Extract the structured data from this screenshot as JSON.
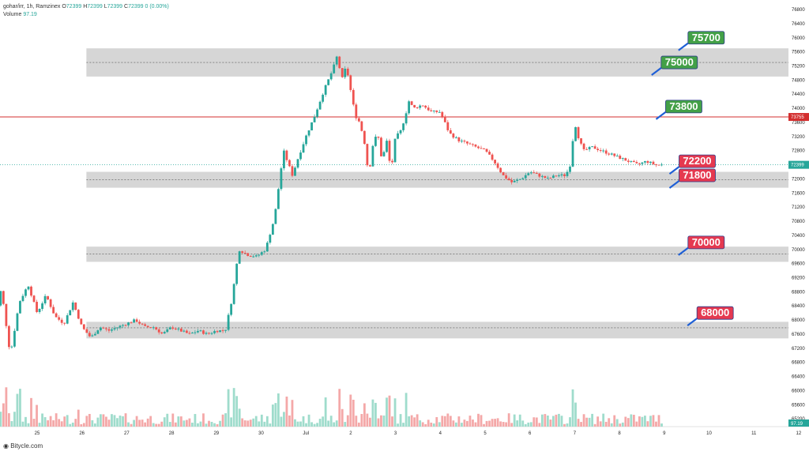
{
  "legend": {
    "symbol": "gohar/irr, 1h, Ramzinex",
    "o_label": "O",
    "o_value": "72399",
    "h_label": "H",
    "h_value": "72399",
    "l_label": "L",
    "l_value": "72399",
    "c_label": "C",
    "c_value": "72399",
    "change": "0 (0.00%)",
    "volume_label": "Volume",
    "volume_value": "97.19"
  },
  "footer": {
    "brand": "Bitycle.com"
  },
  "colors": {
    "up": "#26a69a",
    "down": "#ef5350",
    "zone": "#c8c8c8",
    "resistance_line": "#d32f2f",
    "callout_green": "#43a047",
    "callout_red": "#e53950",
    "arrow_blue": "#1e5fd6",
    "vol_up": "#9fdccc",
    "vol_down": "#f4a8a8"
  },
  "chart_data": {
    "type": "candlestick",
    "x_ticks": [
      "25",
      "26",
      "27",
      "28",
      "29",
      "30",
      "Jul",
      "2",
      "3",
      "4",
      "5",
      "6",
      "7",
      "8",
      "9",
      "10",
      "11",
      "12"
    ],
    "y_ticks": [
      65200,
      65600,
      66000,
      66400,
      66800,
      67200,
      67600,
      68000,
      68400,
      68800,
      69200,
      69600,
      70000,
      70400,
      70800,
      71200,
      71600,
      72000,
      72400,
      72800,
      73200,
      73600,
      74000,
      74400,
      74800,
      75200,
      75600,
      76000,
      76400,
      76800
    ],
    "ylim": [
      64980,
      76980
    ],
    "current_price": 72399,
    "current_price_label": "72399",
    "resistance_price": 73755,
    "resistance_label": "73755",
    "volume_label": "97.19",
    "zones": [
      {
        "low": 74900,
        "high": 75700,
        "mid": 75300
      },
      {
        "low": 71750,
        "high": 72200,
        "mid": 71980
      },
      {
        "low": 69650,
        "high": 70080,
        "mid": 69870
      },
      {
        "low": 67480,
        "high": 67950,
        "mid": 67780
      }
    ],
    "price_path": [
      [
        24.0,
        67600
      ],
      [
        24.2,
        68900
      ],
      [
        24.4,
        67000
      ],
      [
        24.6,
        68500
      ],
      [
        24.8,
        69000
      ],
      [
        25.0,
        68200
      ],
      [
        25.2,
        68700
      ],
      [
        25.4,
        68100
      ],
      [
        25.6,
        67900
      ],
      [
        25.8,
        68500
      ],
      [
        26.0,
        67800
      ],
      [
        26.2,
        67500
      ],
      [
        26.4,
        67800
      ],
      [
        26.6,
        67700
      ],
      [
        26.8,
        67800
      ],
      [
        27.0,
        67900
      ],
      [
        27.2,
        68000
      ],
      [
        27.4,
        67800
      ],
      [
        27.6,
        67800
      ],
      [
        27.8,
        67600
      ],
      [
        28.0,
        67800
      ],
      [
        28.2,
        67700
      ],
      [
        28.4,
        67600
      ],
      [
        28.6,
        67700
      ],
      [
        28.8,
        67600
      ],
      [
        29.0,
        67700
      ],
      [
        29.2,
        67700
      ],
      [
        29.35,
        68600
      ],
      [
        29.5,
        70000
      ],
      [
        29.7,
        69850
      ],
      [
        29.9,
        69800
      ],
      [
        30.1,
        70000
      ],
      [
        30.3,
        70900
      ],
      [
        30.5,
        72800
      ],
      [
        30.7,
        72100
      ],
      [
        30.8,
        72500
      ],
      [
        31.0,
        73200
      ],
      [
        31.2,
        73800
      ],
      [
        31.4,
        74500
      ],
      [
        31.6,
        75100
      ],
      [
        31.7,
        75500
      ],
      [
        31.8,
        74800
      ],
      [
        31.9,
        75200
      ],
      [
        32.0,
        74500
      ],
      [
        32.1,
        73800
      ],
      [
        32.2,
        73600
      ],
      [
        32.3,
        73100
      ],
      [
        32.4,
        72100
      ],
      [
        32.5,
        73000
      ],
      [
        32.6,
        73300
      ],
      [
        32.7,
        72500
      ],
      [
        32.8,
        73100
      ],
      [
        32.9,
        72200
      ],
      [
        33.0,
        73200
      ],
      [
        33.1,
        73300
      ],
      [
        33.2,
        73700
      ],
      [
        33.3,
        74200
      ],
      [
        33.4,
        74000
      ],
      [
        33.6,
        74100
      ],
      [
        33.8,
        73900
      ],
      [
        34.0,
        73900
      ],
      [
        34.2,
        73300
      ],
      [
        34.4,
        73100
      ],
      [
        34.6,
        73000
      ],
      [
        34.8,
        72900
      ],
      [
        35.0,
        72800
      ],
      [
        35.2,
        72500
      ],
      [
        35.4,
        72100
      ],
      [
        35.6,
        71900
      ],
      [
        35.8,
        72000
      ],
      [
        36.0,
        72200
      ],
      [
        36.2,
        72100
      ],
      [
        36.4,
        72000
      ],
      [
        36.6,
        72100
      ],
      [
        36.8,
        72100
      ],
      [
        36.9,
        72400
      ],
      [
        37.0,
        73600
      ],
      [
        37.1,
        73100
      ],
      [
        37.2,
        72800
      ],
      [
        37.4,
        72900
      ],
      [
        37.6,
        72800
      ],
      [
        37.8,
        72700
      ],
      [
        38.0,
        72600
      ],
      [
        38.2,
        72500
      ],
      [
        38.4,
        72400
      ],
      [
        38.6,
        72500
      ],
      [
        38.8,
        72400
      ],
      [
        39.0,
        72399
      ]
    ],
    "callouts": [
      {
        "label": "75700",
        "type": "green",
        "x": 39.6,
        "price": 76000
      },
      {
        "label": "75000",
        "type": "green",
        "x": 39.0,
        "price": 75300
      },
      {
        "label": "73800",
        "type": "green",
        "x": 39.1,
        "price": 74050
      },
      {
        "label": "72200",
        "type": "red",
        "x": 39.4,
        "price": 72500
      },
      {
        "label": "71800",
        "type": "red",
        "x": 39.4,
        "price": 72100
      },
      {
        "label": "70000",
        "type": "red",
        "x": 39.6,
        "price": 70200
      },
      {
        "label": "68000",
        "type": "red",
        "x": 39.8,
        "price": 68200
      }
    ]
  }
}
